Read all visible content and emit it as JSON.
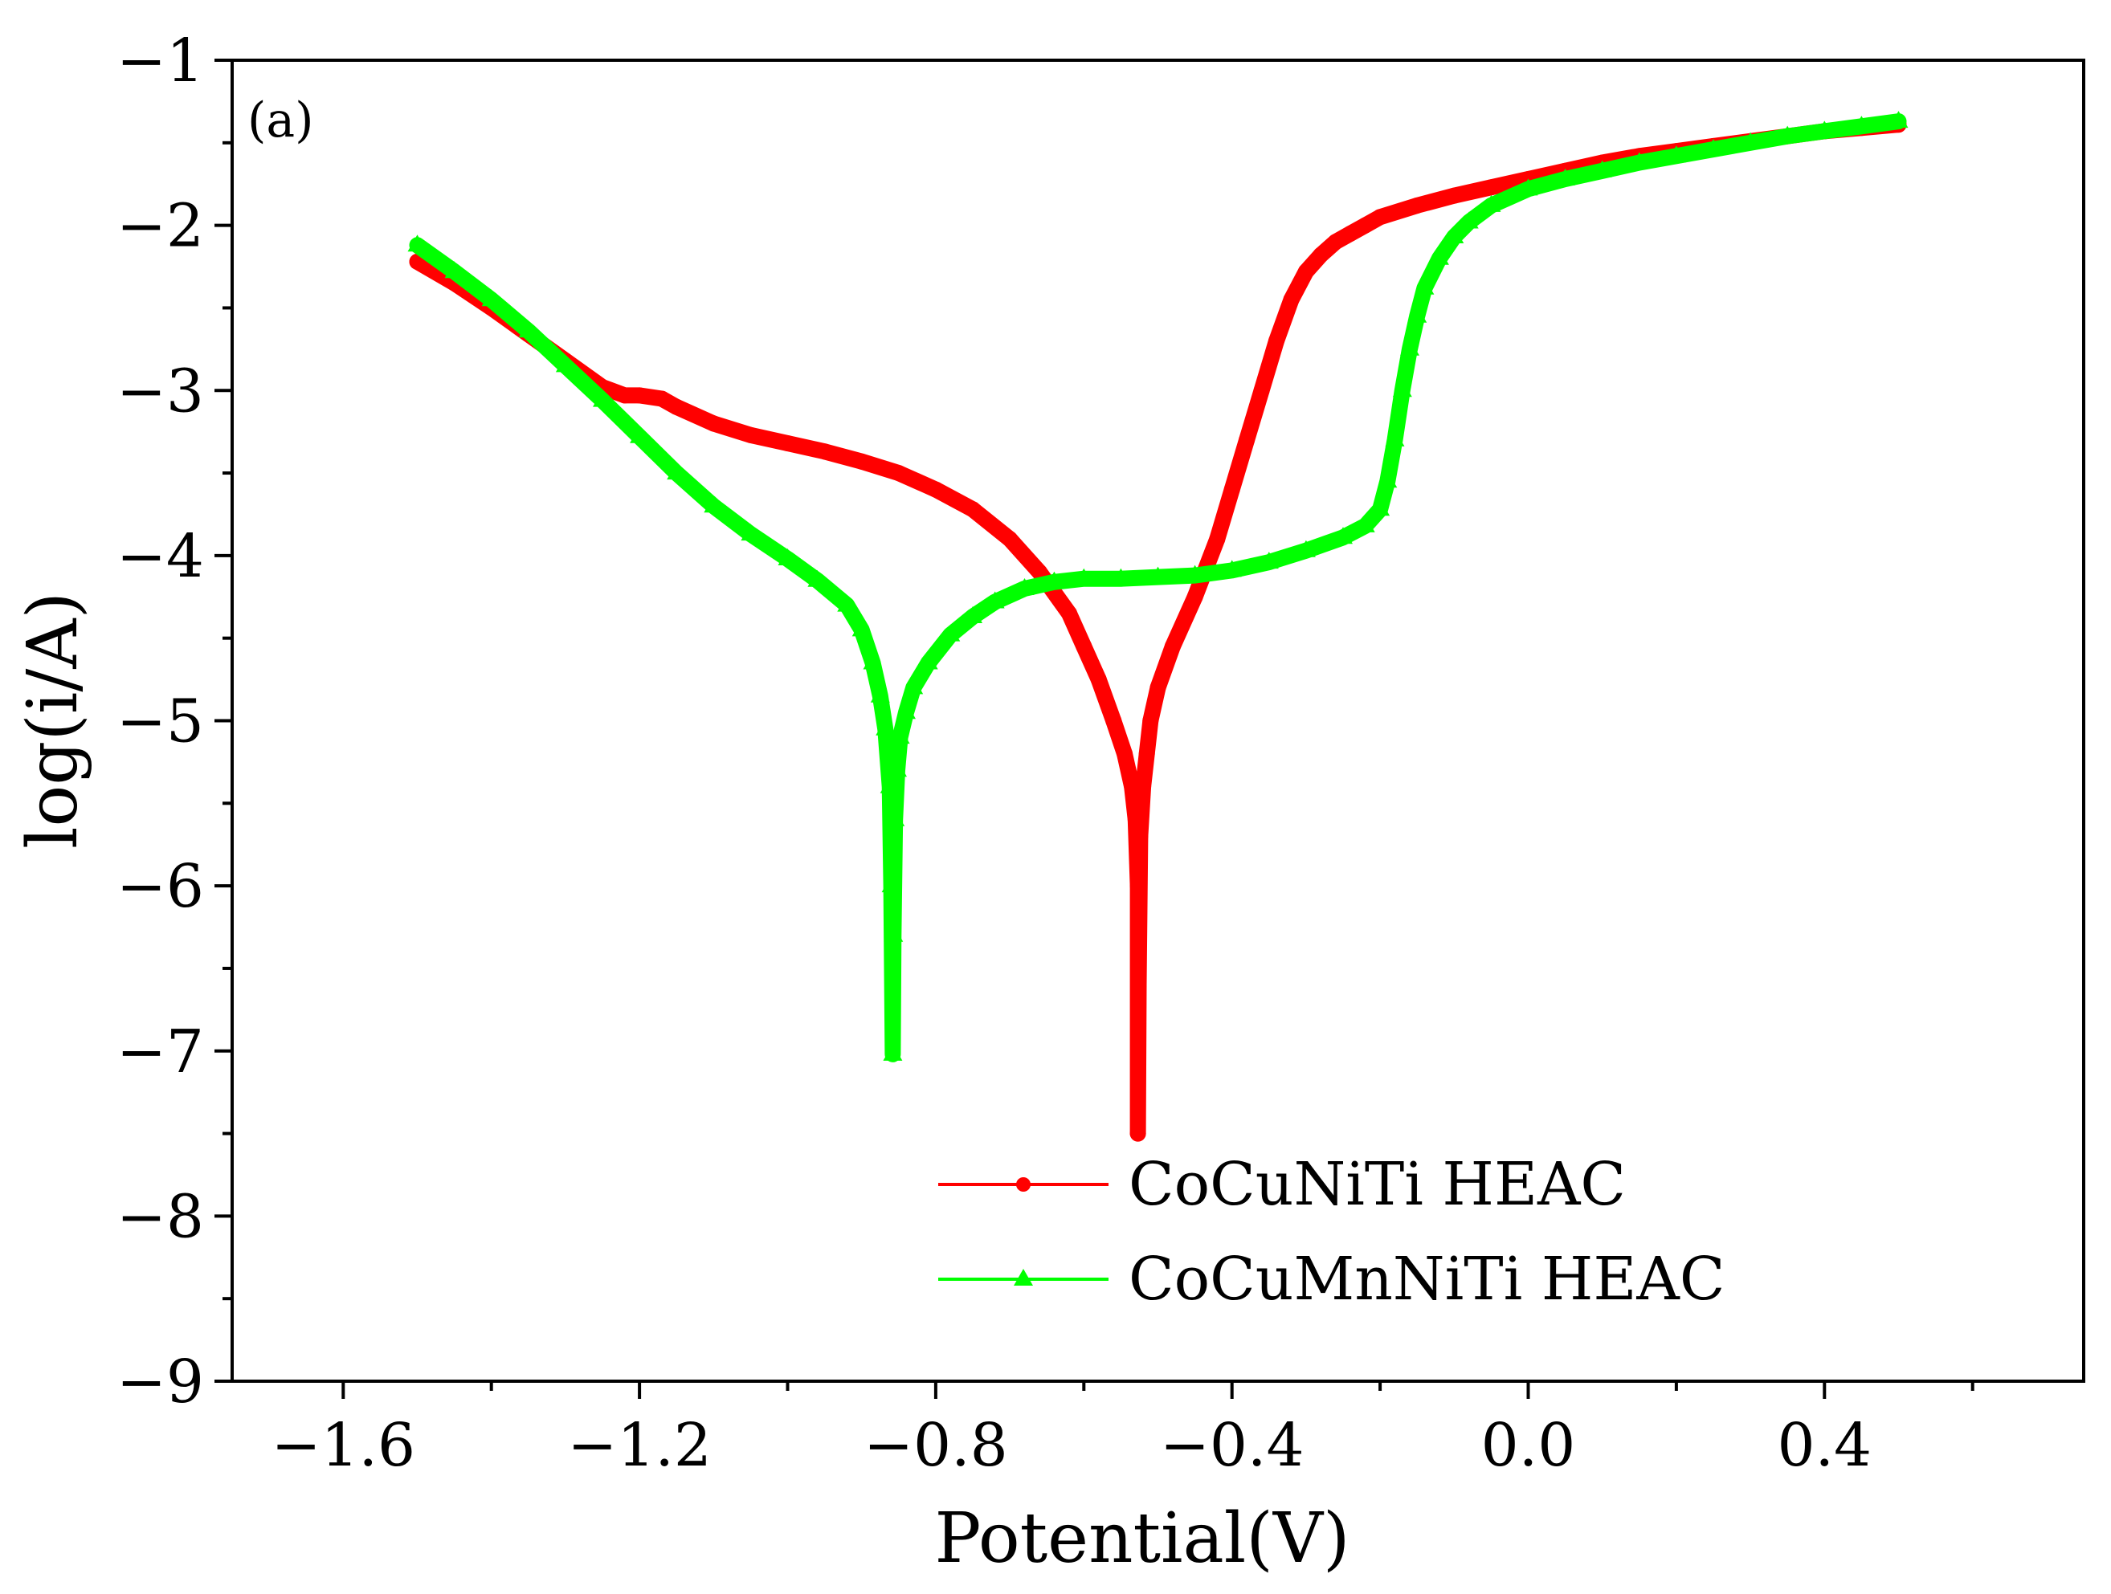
{
  "chart_data": {
    "type": "line",
    "panel_label": "(a)",
    "xlabel": "Potential(V)",
    "ylabel": "log(i/A)",
    "xlim": [
      -1.75,
      0.75
    ],
    "ylim": [
      -9,
      -1
    ],
    "x_ticks": [
      -1.6,
      -1.2,
      -0.8,
      -0.4,
      0.0,
      0.4
    ],
    "x_tick_labels": [
      "−1.6",
      "−1.2",
      "−0.8",
      "−0.4",
      "0.0",
      "0.4"
    ],
    "y_ticks": [
      -1,
      -2,
      -3,
      -4,
      -5,
      -6,
      -7,
      -8,
      -9
    ],
    "y_tick_labels": [
      "−1",
      "−2",
      "−3",
      "−4",
      "−5",
      "−6",
      "−7",
      "−8",
      "−9"
    ],
    "grid": false,
    "legend_position": "bottom-center",
    "series": [
      {
        "name": "CoCuNiTi HEAC",
        "color": "#ff0000",
        "marker": "circle",
        "x": [
          -1.5,
          -1.45,
          -1.4,
          -1.35,
          -1.3,
          -1.25,
          -1.22,
          -1.2,
          -1.17,
          -1.15,
          -1.1,
          -1.05,
          -1.0,
          -0.95,
          -0.9,
          -0.85,
          -0.8,
          -0.75,
          -0.7,
          -0.66,
          -0.62,
          -0.6,
          -0.58,
          -0.56,
          -0.545,
          -0.535,
          -0.53,
          -0.527,
          -0.527,
          -0.526,
          -0.524,
          -0.52,
          -0.515,
          -0.51,
          -0.5,
          -0.48,
          -0.45,
          -0.42,
          -0.4,
          -0.38,
          -0.36,
          -0.34,
          -0.32,
          -0.3,
          -0.28,
          -0.26,
          -0.24,
          -0.22,
          -0.2,
          -0.15,
          -0.1,
          -0.05,
          0.0,
          0.05,
          0.1,
          0.15,
          0.2,
          0.25,
          0.3,
          0.35,
          0.4,
          0.45,
          0.5
        ],
        "y": [
          -2.22,
          -2.35,
          -2.5,
          -2.66,
          -2.82,
          -2.98,
          -3.03,
          -3.03,
          -3.05,
          -3.1,
          -3.2,
          -3.27,
          -3.32,
          -3.37,
          -3.43,
          -3.5,
          -3.6,
          -3.72,
          -3.9,
          -4.1,
          -4.35,
          -4.55,
          -4.75,
          -5.0,
          -5.2,
          -5.4,
          -5.6,
          -6.0,
          -7.5,
          -6.6,
          -5.7,
          -5.4,
          -5.2,
          -5.0,
          -4.8,
          -4.55,
          -4.25,
          -3.9,
          -3.6,
          -3.3,
          -3.0,
          -2.7,
          -2.45,
          -2.28,
          -2.18,
          -2.1,
          -2.05,
          -2.0,
          -1.95,
          -1.88,
          -1.82,
          -1.77,
          -1.72,
          -1.67,
          -1.62,
          -1.58,
          -1.55,
          -1.52,
          -1.49,
          -1.46,
          -1.43,
          -1.41,
          -1.39
        ]
      },
      {
        "name": "CoCuMnNiTi HEAC",
        "color": "#00ff00",
        "marker": "triangle",
        "x": [
          -1.5,
          -1.45,
          -1.4,
          -1.35,
          -1.3,
          -1.25,
          -1.2,
          -1.15,
          -1.1,
          -1.05,
          -1.0,
          -0.96,
          -0.92,
          -0.9,
          -0.885,
          -0.875,
          -0.868,
          -0.862,
          -0.86,
          -0.858,
          -0.857,
          -0.855,
          -0.852,
          -0.848,
          -0.84,
          -0.83,
          -0.81,
          -0.78,
          -0.75,
          -0.72,
          -0.68,
          -0.64,
          -0.6,
          -0.55,
          -0.5,
          -0.45,
          -0.4,
          -0.35,
          -0.3,
          -0.25,
          -0.22,
          -0.2,
          -0.19,
          -0.18,
          -0.17,
          -0.16,
          -0.15,
          -0.14,
          -0.12,
          -0.1,
          -0.08,
          -0.05,
          0.0,
          0.05,
          0.1,
          0.15,
          0.2,
          0.25,
          0.3,
          0.35,
          0.4,
          0.45,
          0.5
        ],
        "y": [
          -2.12,
          -2.28,
          -2.45,
          -2.64,
          -2.85,
          -3.06,
          -3.28,
          -3.5,
          -3.7,
          -3.87,
          -4.02,
          -4.15,
          -4.3,
          -4.45,
          -4.65,
          -4.85,
          -5.05,
          -5.4,
          -6.0,
          -7.02,
          -6.3,
          -5.6,
          -5.3,
          -5.1,
          -4.95,
          -4.8,
          -4.65,
          -4.48,
          -4.37,
          -4.28,
          -4.2,
          -4.16,
          -4.14,
          -4.14,
          -4.13,
          -4.12,
          -4.09,
          -4.04,
          -3.97,
          -3.89,
          -3.82,
          -3.72,
          -3.55,
          -3.3,
          -3.0,
          -2.75,
          -2.55,
          -2.38,
          -2.2,
          -2.07,
          -1.98,
          -1.88,
          -1.78,
          -1.72,
          -1.67,
          -1.62,
          -1.58,
          -1.54,
          -1.5,
          -1.46,
          -1.43,
          -1.4,
          -1.37
        ]
      }
    ]
  }
}
